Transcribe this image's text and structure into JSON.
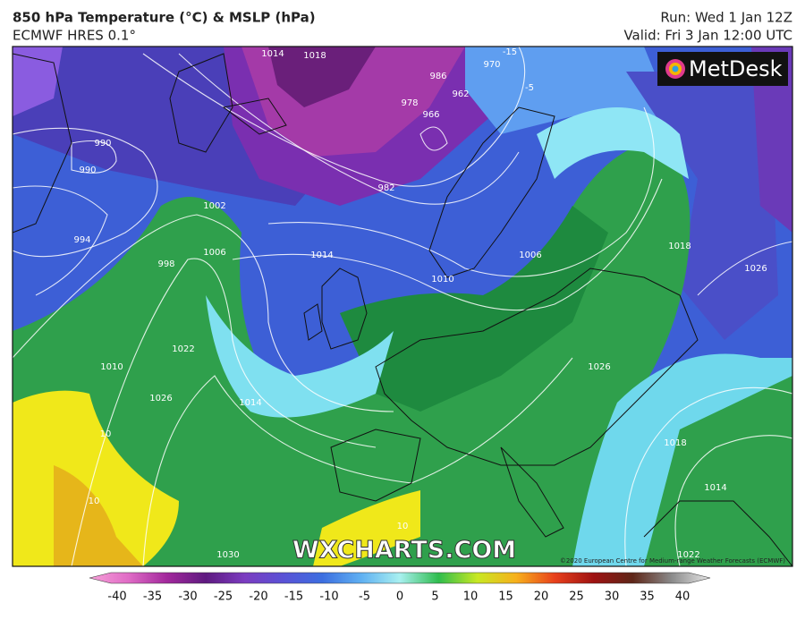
{
  "header": {
    "title": "850 hPa Temperature (°C) & MSLP (hPa)",
    "subtitle": "ECMWF HRES 0.1°",
    "run": "Run: Wed 1 Jan 12Z",
    "valid": "Valid: Fri 3 Jan 12:00 UTC"
  },
  "logo": "MetDesk",
  "watermark": "WXCHARTS.COM",
  "copyright": "©2020 European Centre for Medium-range Weather Forecasts (ECMWF)",
  "colorbar": {
    "ticks": [
      -40,
      -35,
      -30,
      -25,
      -20,
      -15,
      -10,
      -5,
      0,
      5,
      10,
      15,
      20,
      25,
      30,
      35,
      40
    ]
  },
  "map": {
    "labels": [
      "1014",
      "1018",
      "970",
      "986",
      "962",
      "978",
      "966",
      "982",
      "990",
      "990",
      "994",
      "1002",
      "1006",
      "998",
      "1014",
      "1010",
      "1010",
      "1022",
      "1026",
      "1014",
      "1018",
      "1026",
      "1026",
      "1018",
      "1014",
      "1022",
      "1030",
      "1006",
      "10",
      "10",
      "10",
      "-15",
      "-5"
    ]
  }
}
